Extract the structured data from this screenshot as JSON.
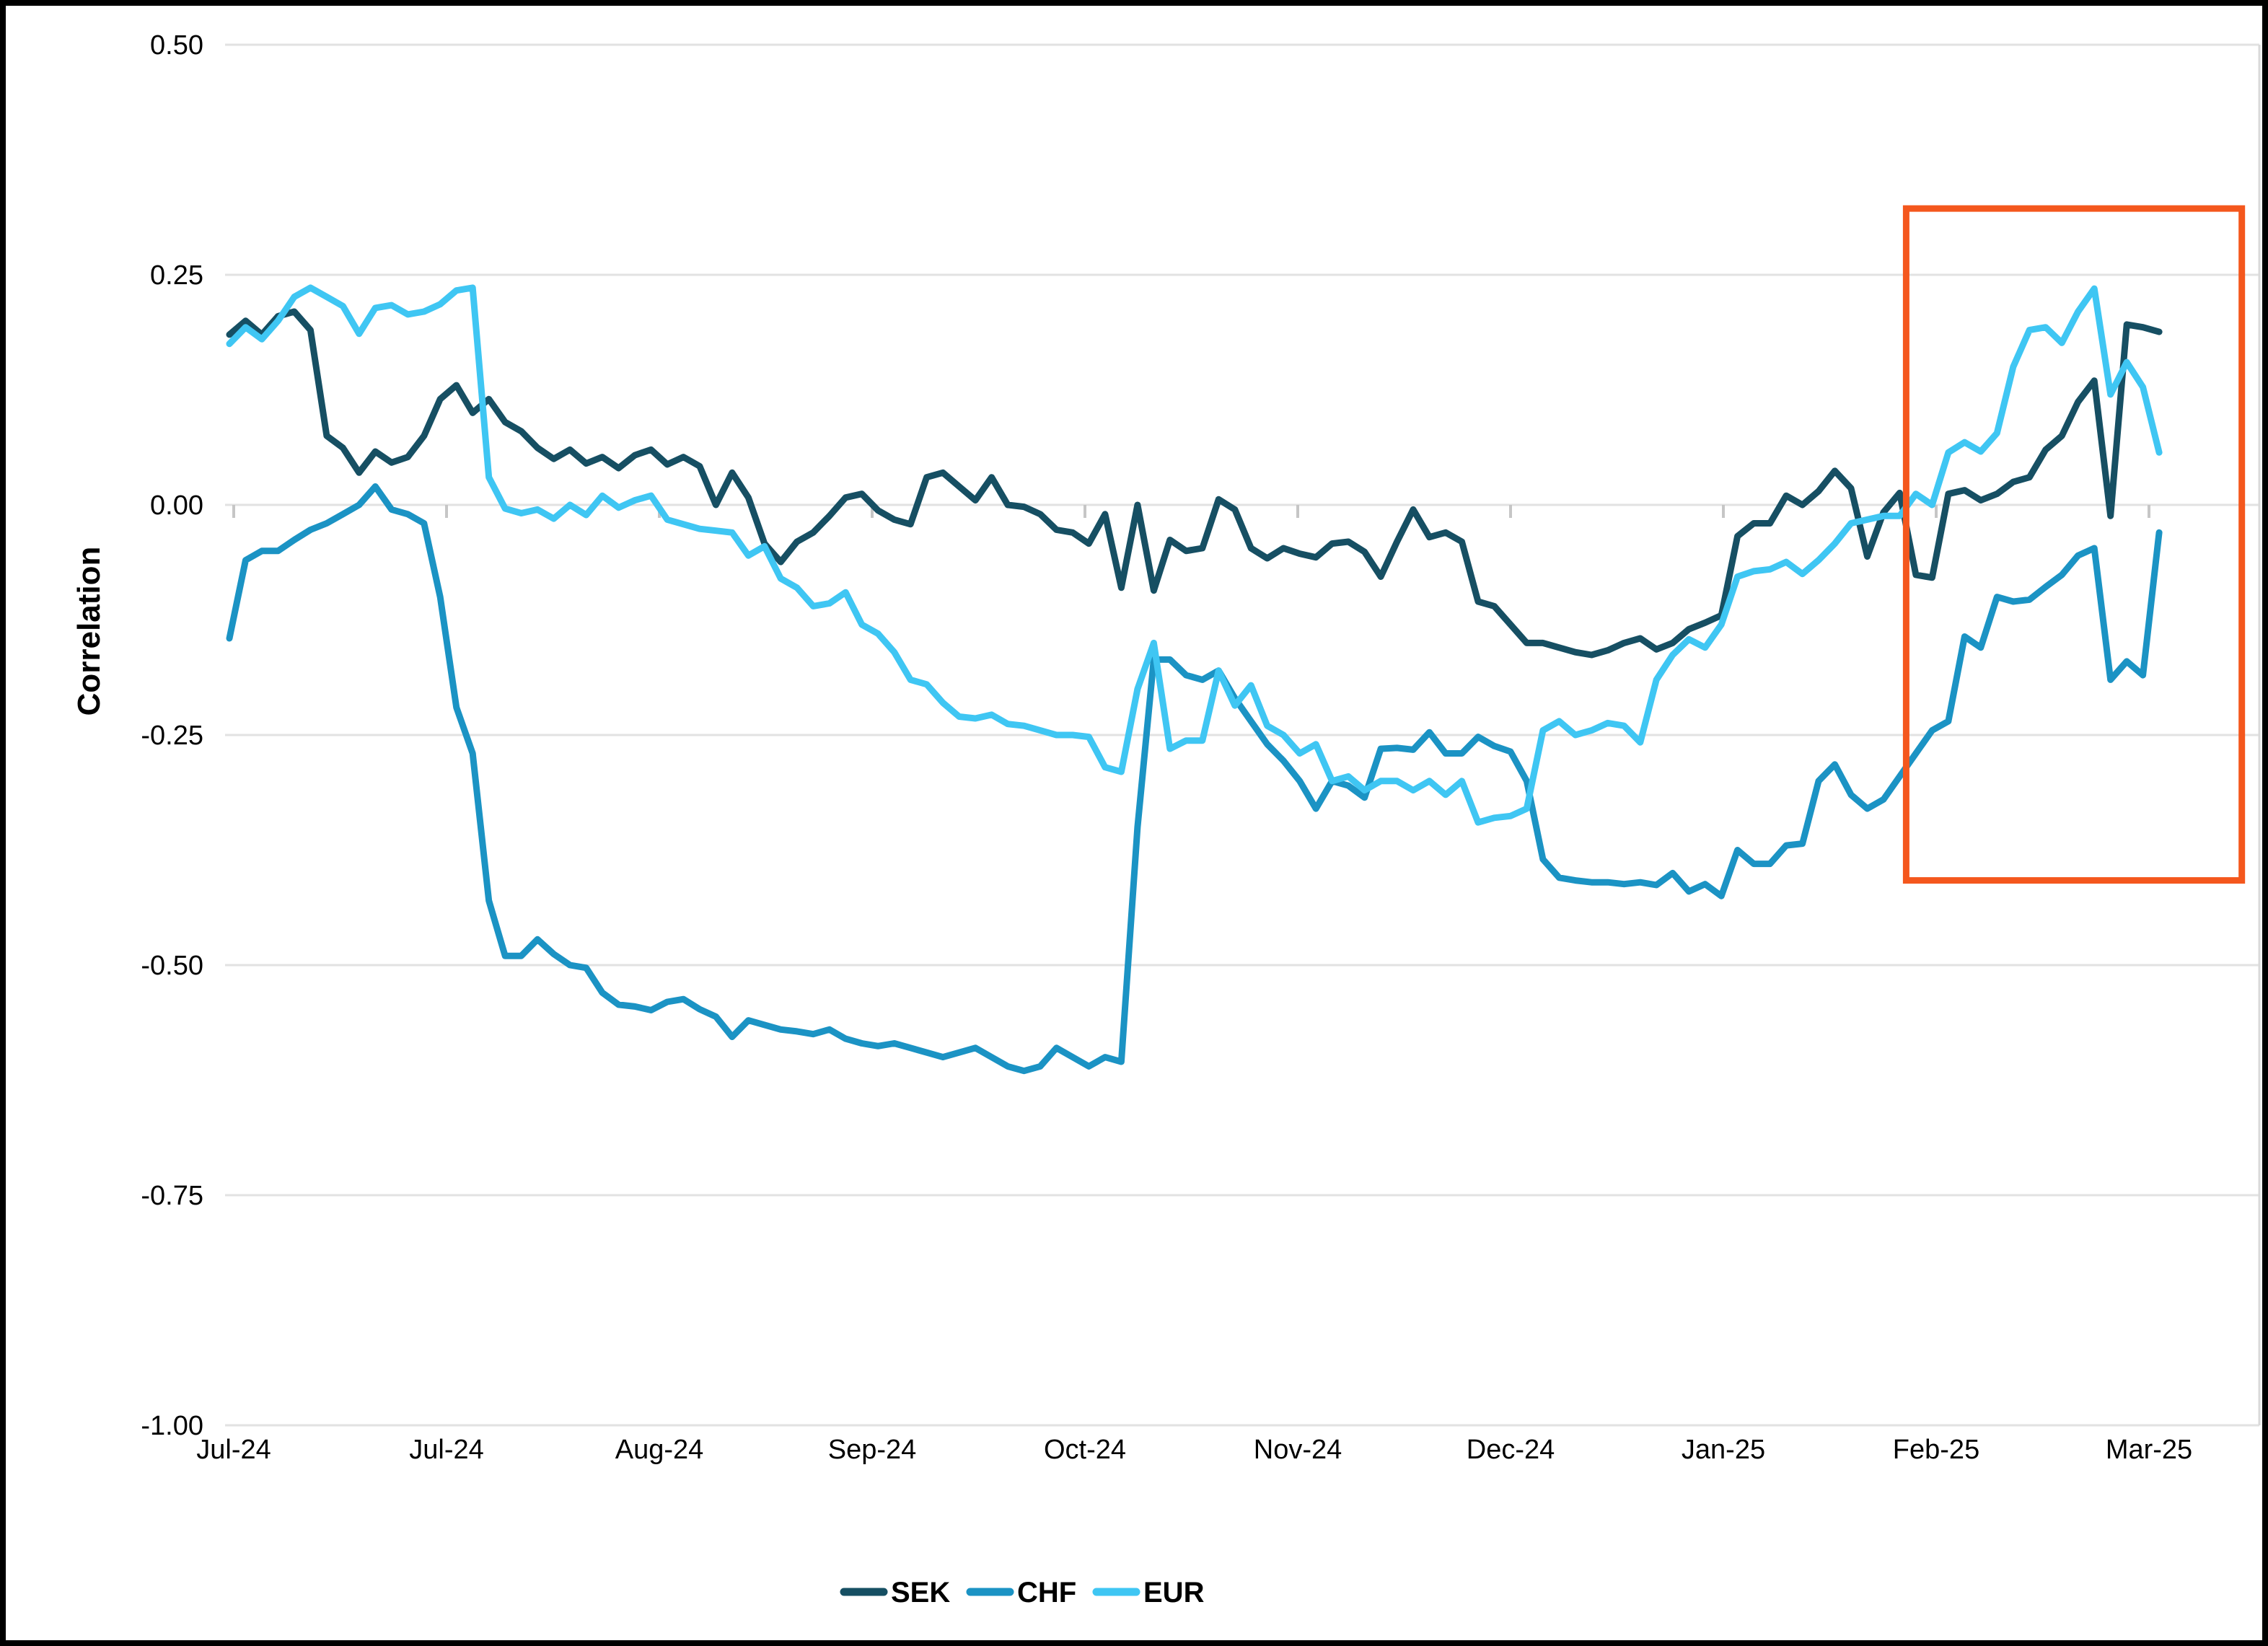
{
  "window": {
    "background": "#ffffff",
    "border_color": "#000000"
  },
  "chart_data": {
    "type": "line",
    "title": "",
    "xlabel": "",
    "ylabel": "Correlation",
    "ylim": [
      -1.0,
      0.5
    ],
    "grid": true,
    "legend_position": "bottom-center",
    "yticks": [
      0.5,
      0.25,
      0,
      -0.25,
      -0.5,
      -0.75,
      -1.0
    ],
    "ytick_labels": [
      "0.50",
      "0.25",
      "0.00",
      "-0.25",
      "-0.50",
      "-0.75",
      "-1.00"
    ],
    "xtick_labels": [
      "Jul-24",
      "Jul-24",
      "Aug-24",
      "Sep-24",
      "Oct-24",
      "Nov-24",
      "Dec-24",
      "Jan-25",
      "Feb-25",
      "Mar-25"
    ],
    "series": [
      {
        "name": "SEK",
        "color": "#164F63",
        "values": [
          0.185,
          0.2,
          0.185,
          0.205,
          0.21,
          0.19,
          0.075,
          0.062,
          0.035,
          0.058,
          0.046,
          0.052,
          0.075,
          0.115,
          0.13,
          0.1,
          0.115,
          0.09,
          0.08,
          0.062,
          0.05,
          0.06,
          0.045,
          0.052,
          0.04,
          0.054,
          0.06,
          0.044,
          0.052,
          0.042,
          0.0,
          0.035,
          0.008,
          -0.042,
          -0.062,
          -0.04,
          -0.03,
          -0.012,
          0.008,
          0.012,
          -0.006,
          -0.016,
          -0.021,
          0.03,
          0.035,
          0.02,
          0.005,
          0.03,
          0.0,
          -0.002,
          -0.01,
          -0.027,
          -0.03,
          -0.042,
          -0.01,
          -0.09,
          0.0,
          -0.093,
          -0.038,
          -0.05,
          -0.047,
          0.006,
          -0.005,
          -0.047,
          -0.058,
          -0.047,
          -0.053,
          -0.057,
          -0.042,
          -0.04,
          -0.051,
          -0.078,
          -0.04,
          -0.005,
          -0.035,
          -0.03,
          -0.04,
          -0.105,
          -0.11,
          -0.13,
          -0.15,
          -0.15,
          -0.155,
          -0.16,
          -0.163,
          -0.158,
          -0.15,
          -0.145,
          -0.157,
          -0.15,
          -0.135,
          -0.128,
          -0.12,
          -0.034,
          -0.02,
          -0.02,
          0.01,
          0.0,
          0.015,
          0.037,
          0.018,
          -0.056,
          -0.008,
          0.013,
          -0.076,
          -0.079,
          0.012,
          0.016,
          0.005,
          0.012,
          0.025,
          0.03,
          0.06,
          0.075,
          0.112,
          0.135,
          -0.012,
          0.196,
          0.193,
          0.188
        ]
      },
      {
        "name": "CHF",
        "color": "#1B93C4",
        "values": [
          -0.145,
          -0.06,
          -0.05,
          -0.05,
          -0.038,
          -0.027,
          -0.02,
          -0.01,
          0.0,
          0.02,
          -0.005,
          -0.01,
          -0.02,
          -0.1,
          -0.22,
          -0.27,
          -0.43,
          -0.49,
          -0.49,
          -0.472,
          -0.488,
          -0.5,
          -0.503,
          -0.53,
          -0.543,
          -0.545,
          -0.549,
          -0.54,
          -0.537,
          -0.548,
          -0.556,
          -0.578,
          -0.56,
          -0.565,
          -0.57,
          -0.572,
          -0.575,
          -0.57,
          -0.58,
          -0.585,
          -0.588,
          -0.585,
          -0.59,
          -0.595,
          -0.6,
          -0.595,
          -0.59,
          -0.6,
          -0.61,
          -0.615,
          -0.61,
          -0.59,
          -0.6,
          -0.61,
          -0.6,
          -0.605,
          -0.35,
          -0.168,
          -0.168,
          -0.185,
          -0.19,
          -0.18,
          -0.21,
          -0.235,
          -0.26,
          -0.278,
          -0.3,
          -0.33,
          -0.3,
          -0.305,
          -0.318,
          -0.265,
          -0.264,
          -0.266,
          -0.247,
          -0.27,
          -0.27,
          -0.252,
          -0.262,
          -0.268,
          -0.3,
          -0.385,
          -0.405,
          -0.408,
          -0.41,
          -0.41,
          -0.412,
          -0.41,
          -0.413,
          -0.4,
          -0.42,
          -0.412,
          -0.425,
          -0.375,
          -0.39,
          -0.39,
          -0.37,
          -0.368,
          -0.3,
          -0.282,
          -0.315,
          -0.33,
          -0.32,
          -0.295,
          -0.27,
          -0.245,
          -0.235,
          -0.143,
          -0.155,
          -0.1,
          -0.105,
          -0.103,
          -0.089,
          -0.076,
          -0.055,
          -0.047,
          -0.19,
          -0.17,
          -0.185,
          -0.03
        ]
      },
      {
        "name": "EUR",
        "color": "#3FC6F3",
        "values": [
          0.175,
          0.193,
          0.18,
          0.2,
          0.226,
          0.236,
          0.226,
          0.216,
          0.186,
          0.214,
          0.217,
          0.207,
          0.21,
          0.218,
          0.233,
          0.236,
          0.03,
          -0.004,
          -0.009,
          -0.005,
          -0.015,
          0.0,
          -0.011,
          0.01,
          -0.003,
          0.005,
          0.01,
          -0.016,
          -0.021,
          -0.026,
          -0.028,
          -0.03,
          -0.055,
          -0.045,
          -0.08,
          -0.09,
          -0.11,
          -0.107,
          -0.095,
          -0.13,
          -0.14,
          -0.16,
          -0.19,
          -0.195,
          -0.215,
          -0.23,
          -0.232,
          -0.228,
          -0.238,
          -0.24,
          -0.245,
          -0.25,
          -0.25,
          -0.252,
          -0.285,
          -0.29,
          -0.2,
          -0.15,
          -0.265,
          -0.256,
          -0.256,
          -0.18,
          -0.218,
          -0.196,
          -0.24,
          -0.25,
          -0.27,
          -0.26,
          -0.3,
          -0.295,
          -0.31,
          -0.3,
          -0.3,
          -0.31,
          -0.3,
          -0.315,
          -0.3,
          -0.345,
          -0.34,
          -0.338,
          -0.33,
          -0.245,
          -0.235,
          -0.25,
          -0.245,
          -0.237,
          -0.24,
          -0.258,
          -0.19,
          -0.163,
          -0.146,
          -0.155,
          -0.13,
          -0.078,
          -0.072,
          -0.07,
          -0.062,
          -0.075,
          -0.06,
          -0.042,
          -0.02,
          -0.016,
          -0.012,
          -0.012,
          0.012,
          0.0,
          0.057,
          0.068,
          0.058,
          0.078,
          0.15,
          0.19,
          0.193,
          0.176,
          0.21,
          0.235,
          0.12,
          0.155,
          0.128,
          0.057
        ]
      }
    ],
    "annotation_box": {
      "label": "highlight-rectangle",
      "color": "#F4571D",
      "x_start_index": 103.4,
      "x_end_index": 124.1,
      "y_top": 0.322,
      "y_bottom": -0.408
    }
  }
}
